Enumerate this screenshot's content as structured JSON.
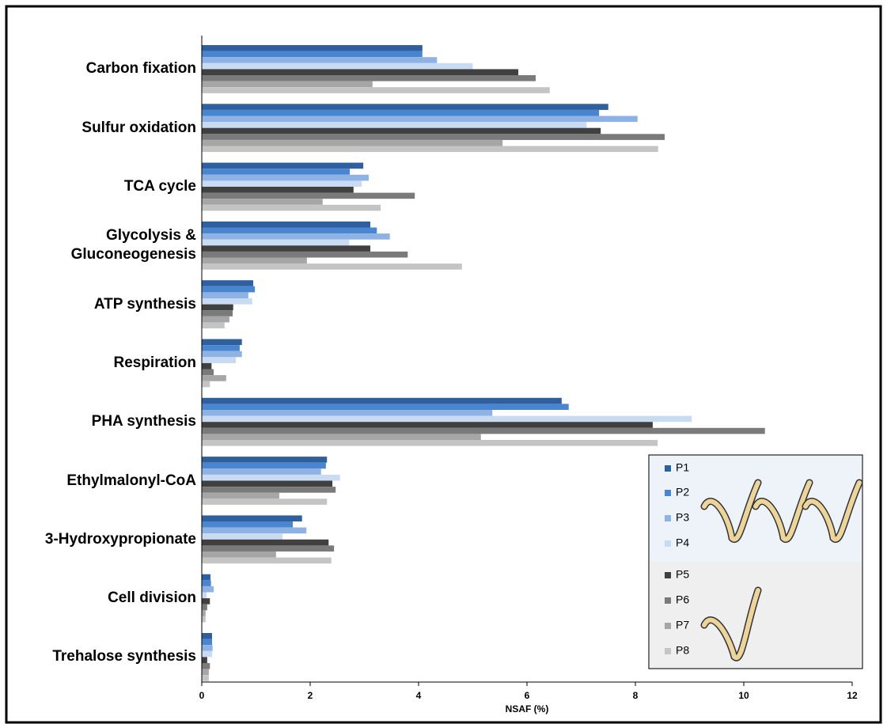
{
  "chart_data": {
    "type": "bar",
    "orientation": "horizontal",
    "x_label": "NSAF (%)",
    "categories": [
      "Carbon fixation",
      "Sulfur oxidation",
      "TCA cycle",
      "Glycolysis &\nGluconeogenesis",
      "ATP synthesis",
      "Respiration",
      "PHA synthesis",
      "Ethylmalonyl-CoA",
      "3-Hydroxypropionate",
      "Cell division",
      "Trehalose synthesis"
    ],
    "series": [
      {
        "name": "P1",
        "color": "#2f5f9e",
        "values": [
          4.07,
          7.5,
          2.98,
          3.11,
          0.95,
          0.74,
          6.64,
          2.31,
          1.85,
          0.16,
          0.19
        ]
      },
      {
        "name": "P2",
        "color": "#4a86d0",
        "values": [
          4.07,
          7.33,
          2.73,
          3.23,
          0.98,
          0.7,
          6.77,
          2.29,
          1.68,
          0.17,
          0.19
        ]
      },
      {
        "name": "P3",
        "color": "#8fb2e4",
        "values": [
          4.34,
          8.04,
          3.08,
          3.47,
          0.86,
          0.74,
          5.36,
          2.2,
          1.93,
          0.22,
          0.2
        ]
      },
      {
        "name": "P4",
        "color": "#c8dbf3",
        "values": [
          5.0,
          7.1,
          2.95,
          2.72,
          0.93,
          0.63,
          9.04,
          2.55,
          1.49,
          0.09,
          0.19
        ]
      },
      {
        "name": "P5",
        "color": "#404040",
        "values": [
          5.84,
          7.36,
          2.8,
          3.11,
          0.58,
          0.18,
          8.32,
          2.41,
          2.34,
          0.15,
          0.1
        ]
      },
      {
        "name": "P6",
        "color": "#7a7a7a",
        "values": [
          6.16,
          8.54,
          3.93,
          3.8,
          0.57,
          0.22,
          10.39,
          2.47,
          2.44,
          0.1,
          0.15
        ]
      },
      {
        "name": "P7",
        "color": "#a6a6a6",
        "values": [
          3.15,
          5.55,
          2.23,
          1.94,
          0.51,
          0.45,
          5.15,
          1.43,
          1.37,
          0.07,
          0.13
        ]
      },
      {
        "name": "P8",
        "color": "#c4c4c4",
        "values": [
          6.42,
          8.42,
          3.3,
          4.8,
          0.42,
          0.15,
          8.41,
          2.31,
          2.39,
          0.07,
          0.13
        ]
      }
    ],
    "xlim": [
      0,
      12
    ],
    "xticks": [
      0,
      2,
      4,
      6,
      8,
      10,
      12
    ]
  }
}
